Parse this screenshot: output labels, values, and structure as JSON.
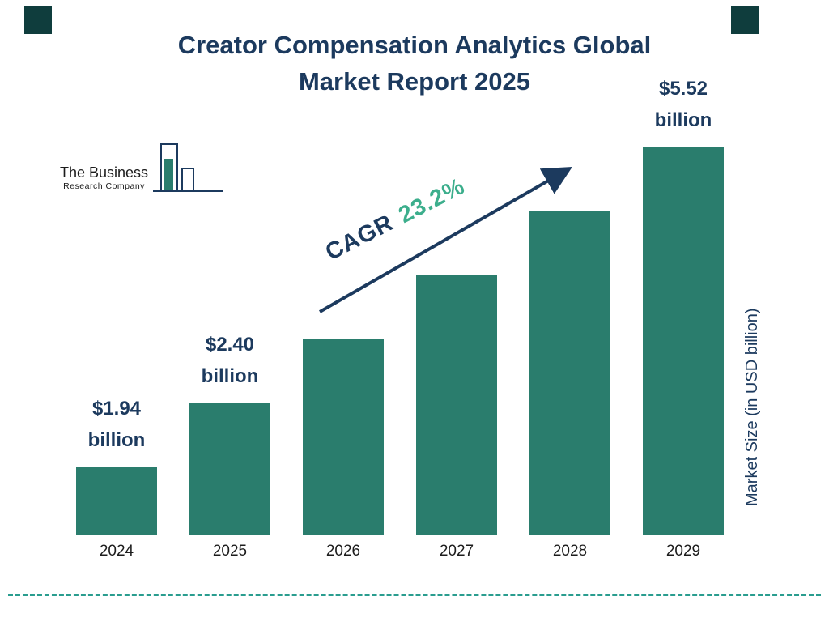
{
  "header": {
    "title_line1": "Creator Compensation Analytics Global",
    "title_line2": "Market Report 2025"
  },
  "logo": {
    "name_line1": "The Business",
    "name_line2": "Research Company"
  },
  "annotation": {
    "cagr_label": "CAGR",
    "cagr_value": "23.2%"
  },
  "axis": {
    "y_label": "Market Size (in USD billion)"
  },
  "colors": {
    "bar": "#2A7D6D",
    "navy": "#1C3A5E",
    "green": "#3CAE8C",
    "dash": "#2A9D8F",
    "corner": "#0F3D3D"
  },
  "chart_data": {
    "type": "bar",
    "title": "Creator Compensation Analytics Global Market Report 2025",
    "ylabel": "Market Size (in USD billion)",
    "unit": "USD billion",
    "categories": [
      "2024",
      "2025",
      "2026",
      "2027",
      "2028",
      "2029"
    ],
    "values": [
      1.94,
      2.4,
      2.96,
      3.64,
      4.49,
      5.52
    ],
    "bar_labels": [
      "$1.94 billion",
      "$2.40 billion",
      "",
      "",
      "",
      "$5.52 billion"
    ],
    "cagr": "23.2%",
    "ylim": [
      0,
      6
    ],
    "grid": false,
    "legend": false
  }
}
